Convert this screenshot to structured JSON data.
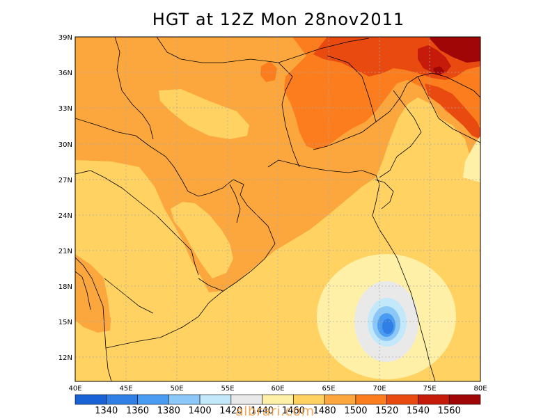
{
  "title": "HGT at 12Z Mon 28nov2011",
  "watermark": "albrari.com",
  "map": {
    "lon_range": [
      40,
      80
    ],
    "lat_range": [
      9.5,
      39
    ],
    "lat_labels": [
      "39N",
      "36N",
      "33N",
      "30N",
      "27N",
      "24N",
      "21N",
      "18N",
      "15N",
      "12N"
    ],
    "lon_labels": [
      "40E",
      "45E",
      "50E",
      "55E",
      "60E",
      "65E",
      "70E",
      "75E",
      "80E"
    ],
    "grid": "dotted"
  },
  "legend": {
    "labels": [
      "1340",
      "1360",
      "1380",
      "1400",
      "1420",
      "1440",
      "1460",
      "1480",
      "1500",
      "1520",
      "1540",
      "1560"
    ],
    "colors": [
      "#1862d6",
      "#2f7fe6",
      "#4a9cf2",
      "#8cc8f7",
      "#c2e8fa",
      "#e9e9e9",
      "#fff0a8",
      "#ffd261",
      "#fca73d",
      "#fb7d1e",
      "#e94a10",
      "#c61b0b",
      "#a10606"
    ]
  },
  "colors": {
    "c1480": "#ffd261",
    "c1500": "#fca73d",
    "c1520": "#fb7d1e",
    "c1540": "#e94a10",
    "c1560": "#c61b0b",
    "c1580": "#a10606",
    "c1460": "#fff0a8",
    "c1440": "#e9e9e9",
    "c1420": "#c2e8fa",
    "c1400": "#8cc8f7",
    "c1380": "#4a9cf2",
    "c1360": "#2f7fe6",
    "c1340": "#1862d6"
  }
}
